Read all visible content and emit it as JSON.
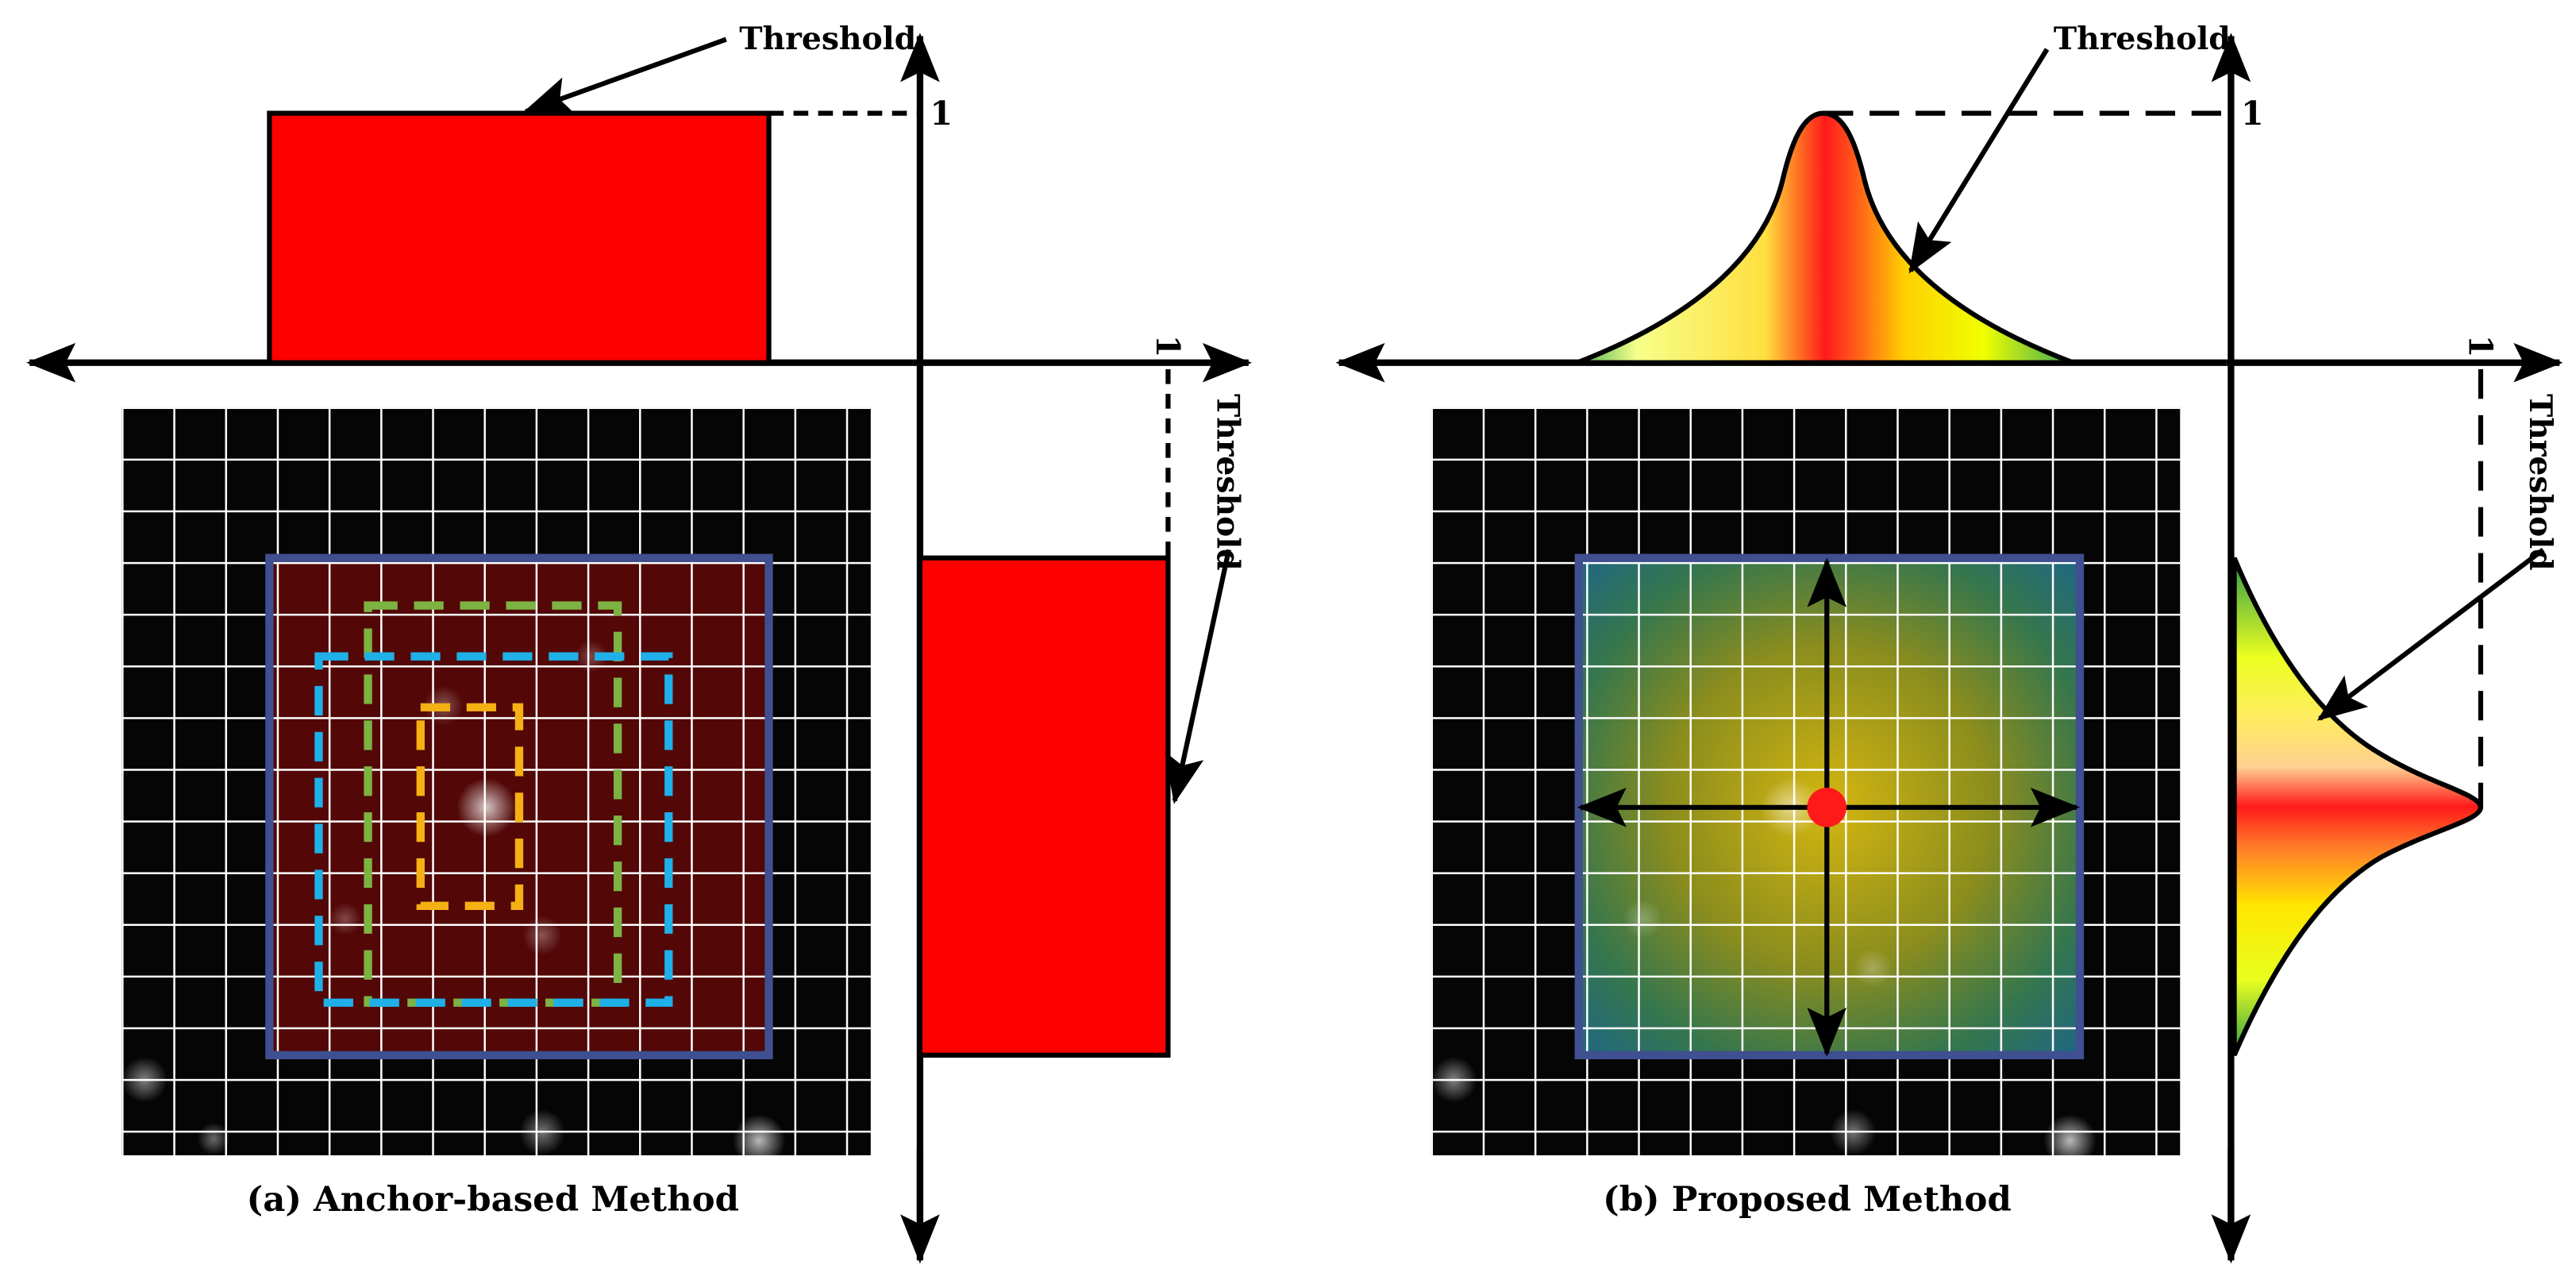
{
  "panels": {
    "a": {
      "caption": "(a) Anchor-based Method",
      "threshold_top": "Threshold",
      "threshold_right": "Threshold",
      "axis_one_top": "1",
      "axis_one_right": "1",
      "boxes": [
        {
          "name": "ground-truth-box",
          "color": "#3f4f8f",
          "style": "solid"
        },
        {
          "name": "anchor-box-green",
          "color": "#7cb342",
          "style": "dashed"
        },
        {
          "name": "anchor-box-blue",
          "color": "#1fb0e8",
          "style": "dashed"
        },
        {
          "name": "anchor-box-orange",
          "color": "#f5b014",
          "style": "dashed"
        }
      ],
      "label_weight": "uniform 1 inside box, 0 outside"
    },
    "b": {
      "caption": "(b) Proposed Method",
      "threshold_top": "Threshold",
      "threshold_right": "Threshold",
      "axis_one_top": "1",
      "axis_one_right": "1",
      "center_point_color": "#ff1a1a",
      "label_weight": "gaussian peak 1 at center"
    }
  },
  "colors": {
    "red": "#ff0000",
    "box_blue": "#3f4f8f",
    "grid_white": "#ffffff",
    "gauss_red": "#ff2a1a",
    "gauss_yellow": "#ffff00",
    "gauss_green": "#4caf50"
  }
}
